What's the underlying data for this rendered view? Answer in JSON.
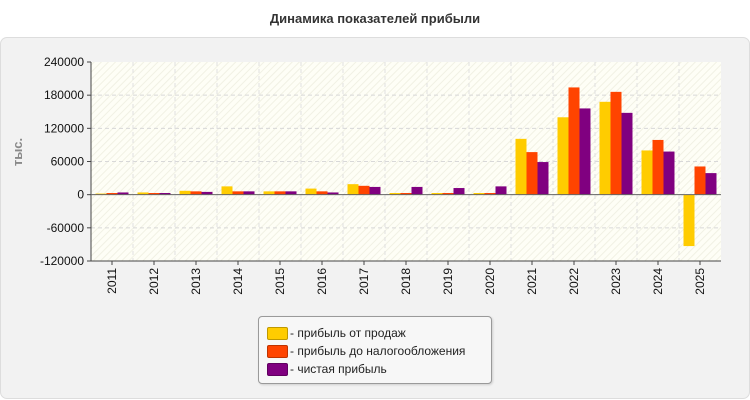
{
  "chart_data": {
    "type": "bar",
    "title": "Динамика показателей прибыли",
    "ylabel": "тыс.",
    "xlabel": "",
    "categories": [
      "2011",
      "2012",
      "2013",
      "2014",
      "2015",
      "2016",
      "2017",
      "2018",
      "2019",
      "2020",
      "2021",
      "2022",
      "2023",
      "2024",
      "2025"
    ],
    "ylim": [
      -120000,
      240000
    ],
    "yticks": [
      240000,
      180000,
      120000,
      60000,
      0,
      -60000,
      -120000
    ],
    "grid": true,
    "legend_position": "bottom",
    "series": [
      {
        "name": "прибыль от продаж",
        "color": "#ffcc00",
        "values": [
          2000,
          4000,
          7000,
          15000,
          6000,
          11000,
          19000,
          3000,
          3000,
          3000,
          101000,
          140000,
          168000,
          80000,
          -93000
        ]
      },
      {
        "name": "прибыль до налогообложения",
        "color": "#ff4400",
        "values": [
          3000,
          3000,
          6000,
          6000,
          6000,
          6000,
          16000,
          3000,
          3000,
          3000,
          77000,
          194000,
          186000,
          99000,
          51000
        ]
      },
      {
        "name": "чистая прибыль",
        "color": "#800080",
        "values": [
          4000,
          3000,
          5000,
          6000,
          6000,
          4000,
          14000,
          14000,
          12000,
          15000,
          59000,
          156000,
          148000,
          78000,
          39000
        ]
      }
    ]
  },
  "legend": {
    "items": [
      {
        "label": "- прибыль от продаж",
        "color": "#ffcc00"
      },
      {
        "label": "- прибыль до налогообложения",
        "color": "#ff4400"
      },
      {
        "label": "- чистая прибыль",
        "color": "#800080"
      }
    ]
  }
}
